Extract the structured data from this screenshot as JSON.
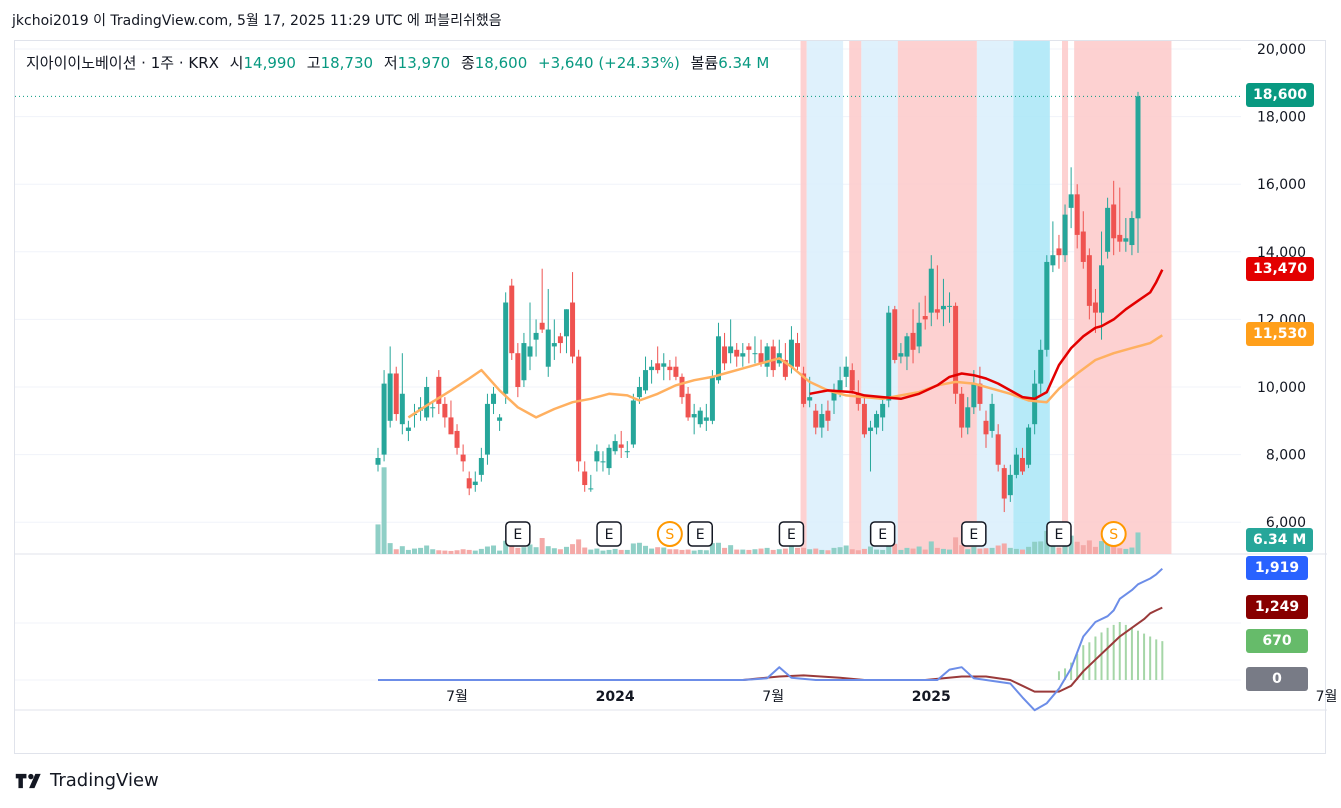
{
  "publish": {
    "text": "jkchoi2019 이 TradingView.com, 5월 17, 2025 11:29 UTC 에 퍼블리쉬했음"
  },
  "legend": {
    "symbol": "지아이이노베이션 · 1주 · KRX",
    "open_label": "시",
    "open": "14,990",
    "high_label": "고",
    "high": "18,730",
    "low_label": "저",
    "low": "13,970",
    "close_label": "종",
    "close": "18,600",
    "change": "+3,640 (+24.33%)",
    "volume_label": "볼륨",
    "volume": "6.34 M"
  },
  "price_tags": {
    "last": "18,600",
    "ma_fast": "13,470",
    "ma_slow": "11,530",
    "volume": "6.34 M",
    "macd": "1,919",
    "signal": "1,249",
    "histogram": "670",
    "zero": "0"
  },
  "colors": {
    "up": "#26a69a",
    "down": "#ef5350",
    "up_vol": "#8fcfc6",
    "down_vol": "#f4a9a7",
    "ma_fast": "#e30000",
    "ma_slow": "#ffb060",
    "ma_alt": "#8a7be0",
    "bg_red": "#fdc9c9",
    "bg_blue": "#d9eefb",
    "bg_cyan": "#a9e6f7",
    "macd_line": "#6c8de8",
    "signal_line": "#9a3a3a",
    "hist": "#a5d6a7",
    "last_tag": "#089981",
    "ma_fast_tag": "#e30000",
    "ma_slow_tag": "#ff9f1a",
    "vol_tag": "#26a69a",
    "macd_tag": "#2962ff",
    "signal_tag": "#880000",
    "hist_tag": "#66bb6a",
    "zero_tag": "#787b86"
  },
  "chart_data": {
    "type": "candlestick",
    "title": "지아이이노베이션 · 1주 · KRX",
    "x_ticks": [
      "7월",
      "2024",
      "7월",
      "2025",
      "7월"
    ],
    "y_ticks": [
      "6,000",
      "8,000",
      "10,000",
      "12,000",
      "14,000",
      "16,000",
      "18,000",
      "20,000"
    ],
    "ylim": [
      5000,
      20000
    ],
    "start_date": "2023-04-03",
    "interval_days": 7,
    "events": [
      {
        "label": "E",
        "week": 23
      },
      {
        "label": "E",
        "week": 38
      },
      {
        "label": "S",
        "week": 48
      },
      {
        "label": "E",
        "week": 53
      },
      {
        "label": "E",
        "week": 68
      },
      {
        "label": "E",
        "week": 83
      },
      {
        "label": "E",
        "week": 98
      },
      {
        "label": "E",
        "week": 112
      },
      {
        "label": "S",
        "week": 121
      }
    ],
    "background_bands": [
      {
        "from": 70,
        "to": 71,
        "color": "bg_red"
      },
      {
        "from": 71,
        "to": 77,
        "color": "bg_blue"
      },
      {
        "from": 78,
        "to": 80,
        "color": "bg_red"
      },
      {
        "from": 80,
        "to": 86,
        "color": "bg_blue"
      },
      {
        "from": 86,
        "to": 99,
        "color": "bg_red"
      },
      {
        "from": 99,
        "to": 105,
        "color": "bg_blue"
      },
      {
        "from": 105,
        "to": 111,
        "color": "bg_cyan"
      },
      {
        "from": 113,
        "to": 114,
        "color": "bg_red"
      },
      {
        "from": 115,
        "to": 131,
        "color": "bg_red"
      }
    ],
    "candles": [
      [
        7700,
        8200,
        7500,
        7900
      ],
      [
        8000,
        10500,
        7800,
        10100
      ],
      [
        9000,
        11200,
        8800,
        10400
      ],
      [
        10400,
        10600,
        9000,
        9200
      ],
      [
        8900,
        11000,
        8600,
        9800
      ],
      [
        8700,
        9000,
        8400,
        8800
      ],
      [
        9200,
        9500,
        8800,
        9200
      ],
      [
        9300,
        9700,
        9000,
        9400
      ],
      [
        9100,
        10300,
        9000,
        10000
      ],
      [
        9400,
        9600,
        9100,
        9400
      ],
      [
        10300,
        10500,
        9200,
        9500
      ],
      [
        9500,
        9700,
        8800,
        9100
      ],
      [
        9100,
        9600,
        8700,
        8600
      ],
      [
        8700,
        8900,
        8000,
        8200
      ],
      [
        8000,
        8300,
        7500,
        7800
      ],
      [
        7300,
        7500,
        6800,
        7000
      ],
      [
        7100,
        7500,
        6900,
        7200
      ],
      [
        7400,
        8200,
        7200,
        7900
      ],
      [
        8000,
        9800,
        7700,
        9500
      ],
      [
        9500,
        10000,
        9200,
        9800
      ],
      [
        9000,
        9200,
        8700,
        9100
      ],
      [
        9800,
        12800,
        9500,
        12500
      ],
      [
        13000,
        13200,
        10800,
        11000
      ],
      [
        11000,
        11300,
        9700,
        10000
      ],
      [
        10200,
        11600,
        10000,
        11300
      ],
      [
        10900,
        12500,
        10500,
        11200
      ],
      [
        11400,
        12000,
        10900,
        11600
      ],
      [
        11900,
        13500,
        11600,
        11700
      ],
      [
        10600,
        12900,
        10300,
        11700
      ],
      [
        11200,
        12000,
        10800,
        11300
      ],
      [
        11500,
        11600,
        11000,
        11300
      ],
      [
        11500,
        12300,
        11000,
        12300
      ],
      [
        12500,
        13400,
        10700,
        10900
      ],
      [
        10900,
        11100,
        7500,
        7800
      ],
      [
        7500,
        7800,
        6900,
        7100
      ],
      [
        7000,
        7400,
        6900,
        7000
      ],
      [
        7800,
        8300,
        7500,
        8100
      ],
      [
        7800,
        8100,
        7500,
        7800
      ],
      [
        7600,
        8300,
        7400,
        8200
      ],
      [
        8100,
        8600,
        8000,
        8400
      ],
      [
        8300,
        8700,
        7900,
        8200
      ],
      [
        8100,
        8400,
        7900,
        8100
      ],
      [
        8300,
        9800,
        8200,
        9600
      ],
      [
        9700,
        10300,
        9500,
        10000
      ],
      [
        9900,
        10900,
        9800,
        10500
      ],
      [
        10500,
        10800,
        10100,
        10600
      ],
      [
        10700,
        11200,
        10400,
        10500
      ],
      [
        10600,
        11000,
        10200,
        10700
      ],
      [
        10600,
        10800,
        10200,
        10500
      ],
      [
        10600,
        10900,
        10200,
        10300
      ],
      [
        10300,
        10400,
        9500,
        9700
      ],
      [
        9800,
        10000,
        9000,
        9100
      ],
      [
        9100,
        9500,
        8600,
        9200
      ],
      [
        8900,
        9400,
        8800,
        9300
      ],
      [
        9000,
        9500,
        8700,
        9100
      ],
      [
        9000,
        10500,
        8900,
        10300
      ],
      [
        10200,
        11900,
        10100,
        11500
      ],
      [
        11200,
        11600,
        10500,
        10700
      ],
      [
        11000,
        12000,
        10700,
        11200
      ],
      [
        11100,
        11300,
        10600,
        10900
      ],
      [
        10900,
        11300,
        10600,
        11000
      ],
      [
        11200,
        11300,
        10700,
        11100
      ],
      [
        11000,
        11500,
        10700,
        11000
      ],
      [
        11000,
        11400,
        10600,
        10700
      ],
      [
        10600,
        11300,
        10300,
        11200
      ],
      [
        11200,
        11400,
        10300,
        10500
      ],
      [
        10700,
        11400,
        10600,
        11000
      ],
      [
        10800,
        11300,
        10200,
        10300
      ],
      [
        10600,
        11800,
        10400,
        11400
      ],
      [
        11300,
        11600,
        10500,
        10600
      ],
      [
        10400,
        10600,
        9400,
        9500
      ],
      [
        9600,
        10300,
        9400,
        9700
      ],
      [
        9300,
        9500,
        8600,
        8800
      ],
      [
        8800,
        9500,
        8500,
        9200
      ],
      [
        9300,
        9600,
        8700,
        9000
      ],
      [
        9600,
        10100,
        9200,
        9900
      ],
      [
        9900,
        10600,
        9700,
        10200
      ],
      [
        10300,
        10900,
        10000,
        10600
      ],
      [
        10500,
        10700,
        9800,
        9900
      ],
      [
        9800,
        10200,
        9300,
        9500
      ],
      [
        9500,
        9700,
        8500,
        8600
      ],
      [
        8700,
        9000,
        7500,
        8800
      ],
      [
        8800,
        9300,
        8600,
        9200
      ],
      [
        9100,
        9700,
        8700,
        9500
      ],
      [
        9600,
        12400,
        9400,
        12200
      ],
      [
        12300,
        12400,
        10700,
        10800
      ],
      [
        10900,
        11300,
        10700,
        11000
      ],
      [
        10900,
        11600,
        10500,
        11500
      ],
      [
        11600,
        12300,
        10700,
        11100
      ],
      [
        11200,
        12500,
        11000,
        11900
      ],
      [
        12100,
        12700,
        11700,
        12000
      ],
      [
        12200,
        13900,
        11800,
        13500
      ],
      [
        12300,
        13600,
        12000,
        12200
      ],
      [
        12300,
        13200,
        11800,
        12400
      ],
      [
        12400,
        12800,
        11900,
        12400
      ],
      [
        12400,
        12500,
        9500,
        9800
      ],
      [
        9800,
        10000,
        8500,
        8800
      ],
      [
        8800,
        9700,
        8600,
        9400
      ],
      [
        9400,
        10500,
        9200,
        10100
      ],
      [
        10100,
        10600,
        9300,
        9500
      ],
      [
        9000,
        9300,
        8200,
        8600
      ],
      [
        8700,
        9800,
        8500,
        9500
      ],
      [
        8600,
        8900,
        7500,
        7700
      ],
      [
        7600,
        7700,
        6300,
        6700
      ],
      [
        6800,
        7700,
        6600,
        7400
      ],
      [
        7400,
        8200,
        7300,
        8000
      ],
      [
        7900,
        8200,
        7400,
        7500
      ],
      [
        7700,
        8900,
        7600,
        8800
      ],
      [
        8900,
        10500,
        8600,
        10100
      ],
      [
        10100,
        11400,
        9800,
        11100
      ],
      [
        11100,
        13900,
        10900,
        13700
      ],
      [
        13600,
        14900,
        13400,
        13900
      ],
      [
        14100,
        14500,
        13500,
        13900
      ],
      [
        13900,
        15400,
        13700,
        15100
      ],
      [
        15300,
        16500,
        14700,
        15700
      ],
      [
        15700,
        16000,
        14100,
        14500
      ],
      [
        14600,
        15200,
        13500,
        13700
      ],
      [
        13900,
        14100,
        12000,
        12400
      ],
      [
        12500,
        12900,
        11600,
        12200
      ],
      [
        12200,
        14600,
        11400,
        13600
      ],
      [
        14000,
        15600,
        13800,
        15300
      ],
      [
        15400,
        16100,
        13900,
        14400
      ],
      [
        14500,
        15900,
        14000,
        14300
      ],
      [
        14300,
        15000,
        14000,
        14400
      ],
      [
        14200,
        15200,
        13900,
        15000
      ],
      [
        14990,
        18730,
        13970,
        18600
      ]
    ],
    "volumes": [
      8.7,
      25.5,
      3.2,
      1.4,
      2.3,
      1.2,
      1.6,
      1.8,
      2.5,
      1.4,
      1.1,
      1.0,
      0.9,
      1.1,
      1.4,
      1.2,
      1.0,
      1.5,
      2.2,
      2.5,
      1.0,
      3.9,
      2.2,
      1.8,
      2.0,
      2.8,
      2.0,
      4.7,
      2.3,
      1.7,
      1.4,
      2.1,
      2.9,
      4.3,
      1.9,
      1.3,
      1.6,
      1.0,
      1.2,
      1.5,
      1.2,
      1.2,
      3.1,
      3.3,
      2.4,
      1.6,
      2.0,
      1.9,
      1.4,
      1.4,
      1.2,
      1.3,
      1.0,
      1.2,
      1.1,
      3.2,
      3.3,
      1.8,
      2.6,
      1.3,
      1.3,
      1.2,
      1.4,
      1.6,
      1.8,
      1.2,
      1.4,
      1.6,
      2.7,
      1.8,
      1.8,
      1.4,
      1.6,
      1.2,
      1.1,
      1.8,
      2.0,
      2.5,
      1.4,
      1.1,
      1.5,
      2.2,
      1.3,
      1.2,
      4.6,
      3.0,
      1.2,
      1.8,
      1.6,
      2.2,
      1.3,
      3.7,
      1.8,
      1.5,
      1.3,
      4.9,
      2.6,
      1.4,
      2.1,
      1.6,
      1.7,
      1.8,
      2.5,
      3.1,
      1.8,
      1.5,
      1.3,
      2.1,
      3.6,
      3.7,
      6.8,
      3.1,
      1.9,
      4.2,
      5.4,
      3.6,
      2.6,
      4.0,
      2.1,
      3.8,
      4.3,
      2.6,
      1.7,
      1.5,
      1.9,
      6.34
    ],
    "ma_fast": [
      [
        71,
        9800
      ],
      [
        74,
        9900
      ],
      [
        78,
        9850
      ],
      [
        80,
        9750
      ],
      [
        83,
        9700
      ],
      [
        86,
        9650
      ],
      [
        89,
        9800
      ],
      [
        92,
        10050
      ],
      [
        94,
        10300
      ],
      [
        96,
        10400
      ],
      [
        98,
        10350
      ],
      [
        100,
        10250
      ],
      [
        102,
        10100
      ],
      [
        104,
        9900
      ],
      [
        106,
        9700
      ],
      [
        108,
        9650
      ],
      [
        110,
        9850
      ],
      [
        112,
        10650
      ],
      [
        114,
        11150
      ],
      [
        116,
        11500
      ],
      [
        118,
        11750
      ],
      [
        119,
        11800
      ],
      [
        121,
        12000
      ],
      [
        123,
        12300
      ],
      [
        125,
        12550
      ],
      [
        127,
        12800
      ],
      [
        128,
        13100
      ],
      [
        129,
        13470
      ]
    ],
    "ma_slow": [
      [
        5,
        9100
      ],
      [
        8,
        9450
      ],
      [
        12,
        9900
      ],
      [
        15,
        10250
      ],
      [
        17,
        10500
      ],
      [
        20,
        9900
      ],
      [
        23,
        9400
      ],
      [
        26,
        9100
      ],
      [
        29,
        9350
      ],
      [
        32,
        9550
      ],
      [
        35,
        9650
      ],
      [
        38,
        9800
      ],
      [
        41,
        9750
      ],
      [
        43,
        9600
      ],
      [
        46,
        9800
      ],
      [
        49,
        10050
      ],
      [
        52,
        10200
      ],
      [
        55,
        10300
      ],
      [
        57,
        10400
      ],
      [
        60,
        10550
      ],
      [
        63,
        10700
      ],
      [
        66,
        10850
      ],
      [
        68,
        10600
      ],
      [
        71,
        10150
      ],
      [
        74,
        9900
      ],
      [
        77,
        9750
      ],
      [
        80,
        9700
      ],
      [
        83,
        9650
      ],
      [
        86,
        9750
      ],
      [
        89,
        9850
      ],
      [
        92,
        10050
      ],
      [
        95,
        10150
      ],
      [
        98,
        10100
      ],
      [
        101,
        9950
      ],
      [
        104,
        9800
      ],
      [
        107,
        9600
      ],
      [
        110,
        9550
      ],
      [
        112,
        9950
      ],
      [
        115,
        10400
      ],
      [
        118,
        10800
      ],
      [
        121,
        11000
      ],
      [
        124,
        11150
      ],
      [
        127,
        11300
      ],
      [
        129,
        11530
      ]
    ],
    "macd": [
      [
        0,
        0
      ],
      [
        60,
        0
      ],
      [
        64,
        30
      ],
      [
        66,
        220
      ],
      [
        68,
        40
      ],
      [
        72,
        0
      ],
      [
        78,
        0
      ],
      [
        84,
        0
      ],
      [
        88,
        0
      ],
      [
        92,
        0
      ],
      [
        94,
        180
      ],
      [
        96,
        220
      ],
      [
        98,
        30
      ],
      [
        100,
        0
      ],
      [
        104,
        -60
      ],
      [
        106,
        -300
      ],
      [
        108,
        -520
      ],
      [
        110,
        -400
      ],
      [
        112,
        -150
      ],
      [
        114,
        200
      ],
      [
        116,
        750
      ],
      [
        118,
        1000
      ],
      [
        120,
        1100
      ],
      [
        121,
        1200
      ],
      [
        122,
        1400
      ],
      [
        124,
        1550
      ],
      [
        125,
        1650
      ],
      [
        126,
        1700
      ],
      [
        127,
        1750
      ],
      [
        128,
        1820
      ],
      [
        129,
        1919
      ]
    ],
    "signal": [
      [
        15,
        0
      ],
      [
        60,
        0
      ],
      [
        66,
        60
      ],
      [
        70,
        80
      ],
      [
        76,
        40
      ],
      [
        80,
        0
      ],
      [
        90,
        0
      ],
      [
        96,
        60
      ],
      [
        100,
        60
      ],
      [
        104,
        0
      ],
      [
        106,
        -100
      ],
      [
        108,
        -200
      ],
      [
        112,
        -200
      ],
      [
        114,
        -100
      ],
      [
        116,
        150
      ],
      [
        118,
        350
      ],
      [
        120,
        550
      ],
      [
        122,
        750
      ],
      [
        124,
        900
      ],
      [
        126,
        1050
      ],
      [
        127,
        1150
      ],
      [
        128,
        1200
      ],
      [
        129,
        1249
      ]
    ],
    "histogram": [
      [
        112,
        150
      ],
      [
        113,
        200
      ],
      [
        114,
        300
      ],
      [
        115,
        450
      ],
      [
        116,
        600
      ],
      [
        117,
        650
      ],
      [
        118,
        750
      ],
      [
        119,
        820
      ],
      [
        120,
        900
      ],
      [
        121,
        950
      ],
      [
        122,
        1000
      ],
      [
        123,
        950
      ],
      [
        124,
        900
      ],
      [
        125,
        850
      ],
      [
        126,
        800
      ],
      [
        127,
        750
      ],
      [
        128,
        700
      ],
      [
        129,
        670
      ]
    ]
  }
}
